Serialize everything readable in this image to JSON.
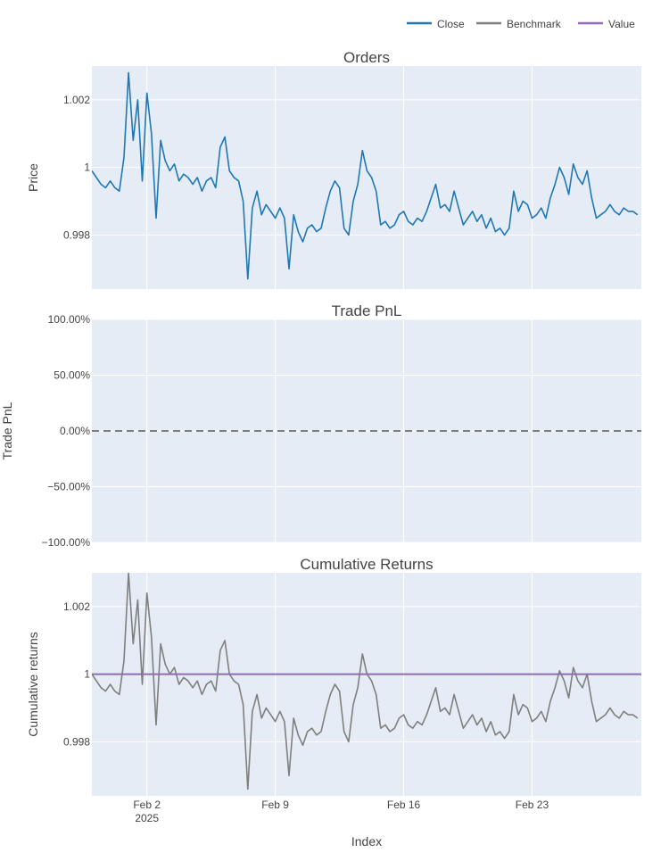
{
  "chart_data": {
    "type": "line",
    "legend": {
      "placement": "top-right",
      "entries": [
        {
          "name": "Close",
          "color": "#1f77b4"
        },
        {
          "name": "Benchmark",
          "color": "#7f7f7f"
        },
        {
          "name": "Value",
          "color": "#9467bd"
        }
      ]
    },
    "xaxis": {
      "title": "Index",
      "range": [
        "2025-01-30T00:00",
        "2025-02-28T23:00"
      ],
      "ticks": [
        {
          "date": "2025-02-02",
          "label": "Feb 2",
          "sublabel": "2025"
        },
        {
          "date": "2025-02-09",
          "label": "Feb 9",
          "sublabel": ""
        },
        {
          "date": "2025-02-16",
          "label": "Feb 16",
          "sublabel": ""
        },
        {
          "date": "2025-02-23",
          "label": "Feb 23",
          "sublabel": ""
        }
      ]
    },
    "panels": [
      {
        "title": "Orders",
        "ylabel": "Price",
        "ylim": [
          0.9964,
          1.003
        ],
        "yticks": [
          {
            "v": 0.998,
            "label": "0.998"
          },
          {
            "v": 1.0,
            "label": "1"
          },
          {
            "v": 1.002,
            "label": "1.002"
          }
        ],
        "series": [
          {
            "name": "Close",
            "color": "#1f77b4"
          }
        ]
      },
      {
        "title": "Trade PnL",
        "ylabel": "Trade PnL",
        "ylim": [
          -1.0,
          1.0
        ],
        "yticks": [
          {
            "v": -1.0,
            "label": "−100.00%"
          },
          {
            "v": -0.5,
            "label": "−50.00%"
          },
          {
            "v": 0.0,
            "label": "0.00%"
          },
          {
            "v": 0.5,
            "label": "50.00%"
          },
          {
            "v": 1.0,
            "label": "100.00%"
          }
        ],
        "zero_line": 0.0
      },
      {
        "title": "Cumulative Returns",
        "ylabel": "Cumulative returns",
        "ylim": [
          0.9964,
          1.003
        ],
        "yticks": [
          {
            "v": 0.998,
            "label": "0.998"
          },
          {
            "v": 1.0,
            "label": "1"
          },
          {
            "v": 1.002,
            "label": "1.002"
          }
        ],
        "series": [
          {
            "name": "Benchmark",
            "color": "#7f7f7f"
          },
          {
            "name": "Value",
            "color": "#9467bd",
            "constant": 1.0
          }
        ]
      }
    ],
    "close_series": {
      "x": [
        "2025-01-30T00:00",
        "2025-01-30T06:00",
        "2025-01-30T12:00",
        "2025-01-30T18:00",
        "2025-01-31T00:00",
        "2025-01-31T06:00",
        "2025-01-31T12:00",
        "2025-01-31T18:00",
        "2025-02-01T00:00",
        "2025-02-01T06:00",
        "2025-02-01T12:00",
        "2025-02-01T18:00",
        "2025-02-02T00:00",
        "2025-02-02T06:00",
        "2025-02-02T12:00",
        "2025-02-02T18:00",
        "2025-02-03T00:00",
        "2025-02-03T06:00",
        "2025-02-03T12:00",
        "2025-02-03T18:00",
        "2025-02-04T00:00",
        "2025-02-04T06:00",
        "2025-02-04T12:00",
        "2025-02-04T18:00",
        "2025-02-05T00:00",
        "2025-02-05T06:00",
        "2025-02-05T12:00",
        "2025-02-05T18:00",
        "2025-02-06T00:00",
        "2025-02-06T06:00",
        "2025-02-06T12:00",
        "2025-02-06T18:00",
        "2025-02-07T00:00",
        "2025-02-07T06:00",
        "2025-02-07T12:00",
        "2025-02-07T18:00",
        "2025-02-08T00:00",
        "2025-02-08T06:00",
        "2025-02-08T12:00",
        "2025-02-08T18:00",
        "2025-02-09T00:00",
        "2025-02-09T06:00",
        "2025-02-09T12:00",
        "2025-02-09T18:00",
        "2025-02-10T00:00",
        "2025-02-10T06:00",
        "2025-02-10T12:00",
        "2025-02-10T18:00",
        "2025-02-11T00:00",
        "2025-02-11T06:00",
        "2025-02-11T12:00",
        "2025-02-11T18:00",
        "2025-02-12T00:00",
        "2025-02-12T06:00",
        "2025-02-12T12:00",
        "2025-02-12T18:00",
        "2025-02-13T00:00",
        "2025-02-13T06:00",
        "2025-02-13T12:00",
        "2025-02-13T18:00",
        "2025-02-14T00:00",
        "2025-02-14T06:00",
        "2025-02-14T12:00",
        "2025-02-14T18:00",
        "2025-02-15T00:00",
        "2025-02-15T06:00",
        "2025-02-15T12:00",
        "2025-02-15T18:00",
        "2025-02-16T00:00",
        "2025-02-16T06:00",
        "2025-02-16T12:00",
        "2025-02-16T18:00",
        "2025-02-17T00:00",
        "2025-02-17T06:00",
        "2025-02-17T12:00",
        "2025-02-17T18:00",
        "2025-02-18T00:00",
        "2025-02-18T06:00",
        "2025-02-18T12:00",
        "2025-02-18T18:00",
        "2025-02-19T00:00",
        "2025-02-19T06:00",
        "2025-02-19T12:00",
        "2025-02-19T18:00",
        "2025-02-20T00:00",
        "2025-02-20T06:00",
        "2025-02-20T12:00",
        "2025-02-20T18:00",
        "2025-02-21T00:00",
        "2025-02-21T06:00",
        "2025-02-21T12:00",
        "2025-02-21T18:00",
        "2025-02-22T00:00",
        "2025-02-22T06:00",
        "2025-02-22T12:00",
        "2025-02-22T18:00",
        "2025-02-23T00:00",
        "2025-02-23T06:00",
        "2025-02-23T12:00",
        "2025-02-23T18:00",
        "2025-02-24T00:00",
        "2025-02-24T06:00",
        "2025-02-24T12:00",
        "2025-02-24T18:00",
        "2025-02-25T00:00",
        "2025-02-25T06:00",
        "2025-02-25T12:00",
        "2025-02-25T18:00",
        "2025-02-26T00:00",
        "2025-02-26T06:00",
        "2025-02-26T12:00",
        "2025-02-26T18:00",
        "2025-02-27T00:00",
        "2025-02-27T06:00",
        "2025-02-27T12:00",
        "2025-02-27T18:00",
        "2025-02-28T00:00",
        "2025-02-28T06:00",
        "2025-02-28T12:00",
        "2025-02-28T18:00"
      ],
      "y": [
        0.9999,
        0.9997,
        0.9995,
        0.9994,
        0.9996,
        0.9994,
        0.9993,
        1.0003,
        1.0028,
        1.0008,
        1.002,
        0.9996,
        1.0022,
        1.001,
        0.9985,
        1.0008,
        1.0002,
        0.9999,
        1.0001,
        0.9996,
        0.9998,
        0.9997,
        0.9995,
        0.9997,
        0.9993,
        0.9996,
        0.9997,
        0.9994,
        1.0006,
        1.0009,
        0.9999,
        0.9997,
        0.9996,
        0.999,
        0.9967,
        0.9988,
        0.9993,
        0.9986,
        0.9989,
        0.9987,
        0.9985,
        0.9988,
        0.9985,
        0.997,
        0.9986,
        0.9981,
        0.9978,
        0.9982,
        0.9983,
        0.9981,
        0.9982,
        0.9988,
        0.9993,
        0.9996,
        0.9994,
        0.9982,
        0.998,
        0.999,
        0.9995,
        1.0005,
        0.9999,
        0.9997,
        0.9993,
        0.9983,
        0.9984,
        0.9982,
        0.9983,
        0.9986,
        0.9987,
        0.9984,
        0.9983,
        0.9985,
        0.9984,
        0.9987,
        0.9991,
        0.9995,
        0.9988,
        0.9989,
        0.9987,
        0.9993,
        0.9988,
        0.9983,
        0.9985,
        0.9987,
        0.9984,
        0.9986,
        0.9982,
        0.9985,
        0.9981,
        0.9982,
        0.998,
        0.9982,
        0.9993,
        0.9987,
        0.999,
        0.9989,
        0.9985,
        0.9986,
        0.9988,
        0.9985,
        0.9991,
        0.9995,
        1.0,
        0.9997,
        0.9992,
        1.0001,
        0.9997,
        0.9995,
        0.9999,
        0.9991,
        0.9985,
        0.9986,
        0.9987,
        0.9989,
        0.9987,
        0.9986,
        0.9988,
        0.9987,
        0.9987,
        0.9986
      ]
    },
    "benchmark_series": {
      "x": [
        "2025-01-30T00:00",
        "2025-01-30T06:00",
        "2025-01-30T12:00",
        "2025-01-30T18:00",
        "2025-01-31T00:00",
        "2025-01-31T06:00",
        "2025-01-31T12:00",
        "2025-01-31T18:00",
        "2025-02-01T00:00",
        "2025-02-01T06:00",
        "2025-02-01T12:00",
        "2025-02-01T18:00",
        "2025-02-02T00:00",
        "2025-02-02T06:00",
        "2025-02-02T12:00",
        "2025-02-02T18:00",
        "2025-02-03T00:00",
        "2025-02-03T06:00",
        "2025-02-03T12:00",
        "2025-02-03T18:00",
        "2025-02-04T00:00",
        "2025-02-04T06:00",
        "2025-02-04T12:00",
        "2025-02-04T18:00",
        "2025-02-05T00:00",
        "2025-02-05T06:00",
        "2025-02-05T12:00",
        "2025-02-05T18:00",
        "2025-02-06T00:00",
        "2025-02-06T06:00",
        "2025-02-06T12:00",
        "2025-02-06T18:00",
        "2025-02-07T00:00",
        "2025-02-07T06:00",
        "2025-02-07T12:00",
        "2025-02-07T18:00",
        "2025-02-08T00:00",
        "2025-02-08T06:00",
        "2025-02-08T12:00",
        "2025-02-08T18:00",
        "2025-02-09T00:00",
        "2025-02-09T06:00",
        "2025-02-09T12:00",
        "2025-02-09T18:00",
        "2025-02-10T00:00",
        "2025-02-10T06:00",
        "2025-02-10T12:00",
        "2025-02-10T18:00",
        "2025-02-11T00:00",
        "2025-02-11T06:00",
        "2025-02-11T12:00",
        "2025-02-11T18:00",
        "2025-02-12T00:00",
        "2025-02-12T06:00",
        "2025-02-12T12:00",
        "2025-02-12T18:00",
        "2025-02-13T00:00",
        "2025-02-13T06:00",
        "2025-02-13T12:00",
        "2025-02-13T18:00",
        "2025-02-14T00:00",
        "2025-02-14T06:00",
        "2025-02-14T12:00",
        "2025-02-14T18:00",
        "2025-02-15T00:00",
        "2025-02-15T06:00",
        "2025-02-15T12:00",
        "2025-02-15T18:00",
        "2025-02-16T00:00",
        "2025-02-16T06:00",
        "2025-02-16T12:00",
        "2025-02-16T18:00",
        "2025-02-17T00:00",
        "2025-02-17T06:00",
        "2025-02-17T12:00",
        "2025-02-17T18:00",
        "2025-02-18T00:00",
        "2025-02-18T06:00",
        "2025-02-18T12:00",
        "2025-02-18T18:00",
        "2025-02-19T00:00",
        "2025-02-19T06:00",
        "2025-02-19T12:00",
        "2025-02-19T18:00",
        "2025-02-20T00:00",
        "2025-02-20T06:00",
        "2025-02-20T12:00",
        "2025-02-20T18:00",
        "2025-02-21T00:00",
        "2025-02-21T06:00",
        "2025-02-21T12:00",
        "2025-02-21T18:00",
        "2025-02-22T00:00",
        "2025-02-22T06:00",
        "2025-02-22T12:00",
        "2025-02-22T18:00",
        "2025-02-23T00:00",
        "2025-02-23T06:00",
        "2025-02-23T12:00",
        "2025-02-23T18:00",
        "2025-02-24T00:00",
        "2025-02-24T06:00",
        "2025-02-24T12:00",
        "2025-02-24T18:00",
        "2025-02-25T00:00",
        "2025-02-25T06:00",
        "2025-02-25T12:00",
        "2025-02-25T18:00",
        "2025-02-26T00:00",
        "2025-02-26T06:00",
        "2025-02-26T12:00",
        "2025-02-26T18:00",
        "2025-02-27T00:00",
        "2025-02-27T06:00",
        "2025-02-27T12:00",
        "2025-02-27T18:00",
        "2025-02-28T00:00",
        "2025-02-28T06:00",
        "2025-02-28T12:00",
        "2025-02-28T18:00"
      ],
      "y": [
        1.0,
        0.9998,
        0.9996,
        0.9995,
        0.9997,
        0.9995,
        0.9994,
        1.0004,
        1.003,
        1.0009,
        1.0022,
        0.9997,
        1.0024,
        1.0011,
        0.9985,
        1.0009,
        1.0003,
        1.0,
        1.0002,
        0.9997,
        0.9999,
        0.9998,
        0.9996,
        0.9998,
        0.9994,
        0.9997,
        0.9998,
        0.9995,
        1.0007,
        1.001,
        1.0,
        0.9998,
        0.9997,
        0.9991,
        0.9966,
        0.9989,
        0.9994,
        0.9987,
        0.999,
        0.9988,
        0.9986,
        0.9989,
        0.9986,
        0.997,
        0.9987,
        0.9982,
        0.9979,
        0.9983,
        0.9984,
        0.9982,
        0.9983,
        0.9989,
        0.9994,
        0.9997,
        0.9995,
        0.9983,
        0.998,
        0.9991,
        0.9996,
        1.0006,
        1.0,
        0.9998,
        0.9994,
        0.9984,
        0.9985,
        0.9983,
        0.9984,
        0.9987,
        0.9988,
        0.9985,
        0.9984,
        0.9986,
        0.9985,
        0.9988,
        0.9992,
        0.9996,
        0.9989,
        0.999,
        0.9988,
        0.9994,
        0.9989,
        0.9984,
        0.9986,
        0.9988,
        0.9985,
        0.9987,
        0.9983,
        0.9986,
        0.9982,
        0.9983,
        0.9981,
        0.9983,
        0.9994,
        0.9988,
        0.9991,
        0.999,
        0.9986,
        0.9987,
        0.9989,
        0.9986,
        0.9992,
        0.9996,
        1.0001,
        0.9998,
        0.9993,
        1.0002,
        0.9998,
        0.9996,
        1.0,
        0.9992,
        0.9986,
        0.9987,
        0.9988,
        0.999,
        0.9988,
        0.9987,
        0.9989,
        0.9988,
        0.9988,
        0.9987
      ]
    }
  }
}
